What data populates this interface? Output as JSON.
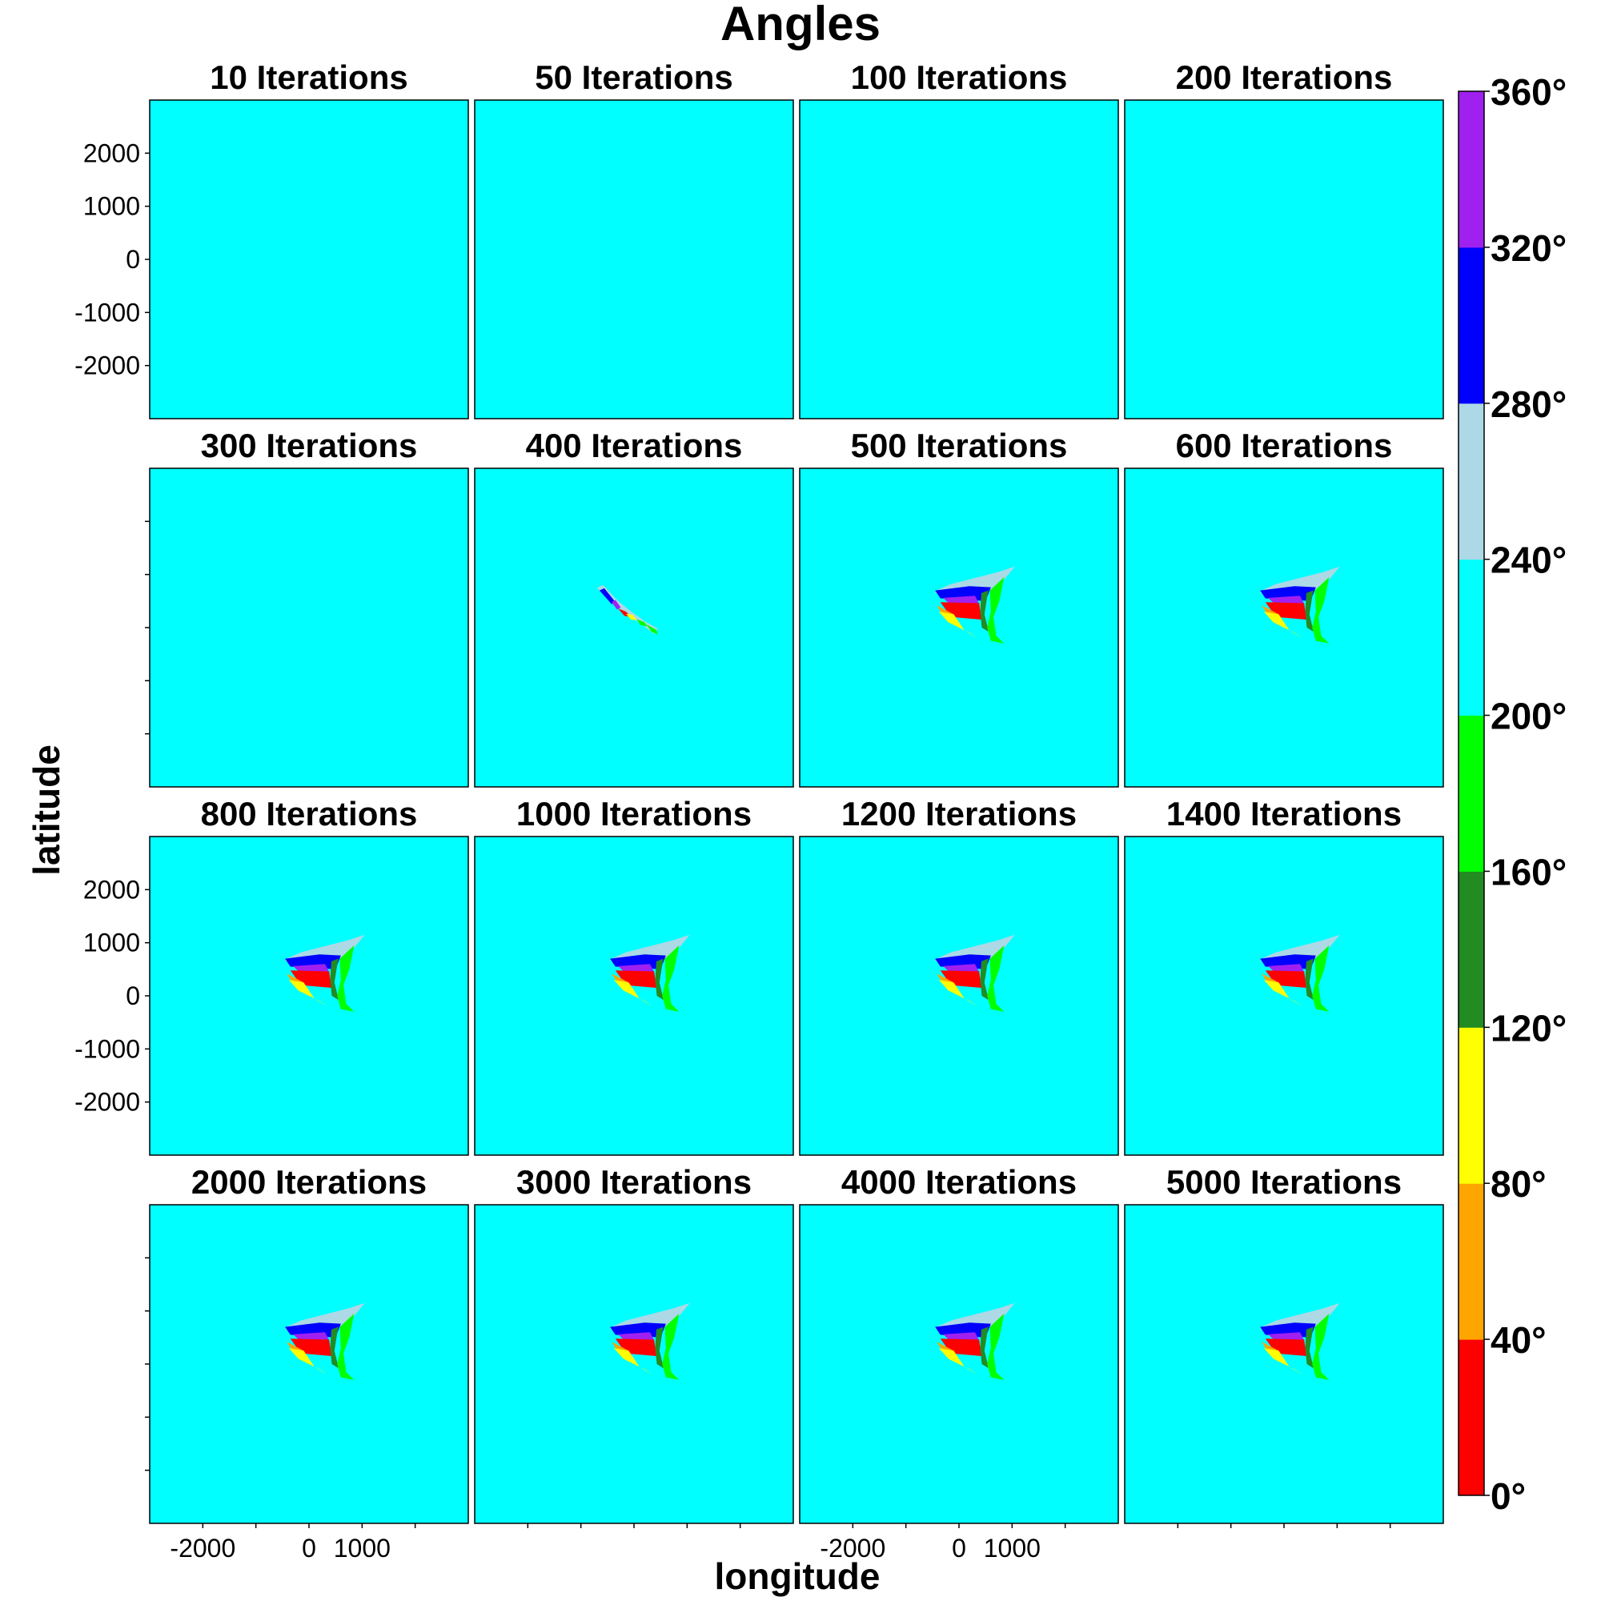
{
  "title": "Angles",
  "xlabel": "longitude",
  "ylabel": "latitude",
  "chart_data": {
    "type": "heatmap",
    "title": "Angles",
    "xlabel": "longitude",
    "ylabel": "latitude",
    "xlim": [
      -3000,
      3000
    ],
    "ylim": [
      -3000,
      3000
    ],
    "x_ticks": [
      "-2000",
      "0",
      "1000"
    ],
    "y_ticks": [
      "2000",
      "1000",
      "0",
      "-1000",
      "-2000"
    ],
    "background_angle_band": "200°–240°",
    "colorbar": {
      "ticks": [
        "0°",
        "40°",
        "80°",
        "120°",
        "160°",
        "200°",
        "240°",
        "280°",
        "320°",
        "360°"
      ],
      "bands": [
        {
          "from": 0,
          "to": 40,
          "color": "#ff0000"
        },
        {
          "from": 40,
          "to": 80,
          "color": "#ffa500"
        },
        {
          "from": 80,
          "to": 120,
          "color": "#ffff00"
        },
        {
          "from": 120,
          "to": 160,
          "color": "#228b22"
        },
        {
          "from": 160,
          "to": 200,
          "color": "#00ff00"
        },
        {
          "from": 200,
          "to": 240,
          "color": "#00ffff"
        },
        {
          "from": 240,
          "to": 280,
          "color": "#add8e6"
        },
        {
          "from": 280,
          "to": 320,
          "color": "#0000ff"
        },
        {
          "from": 320,
          "to": 360,
          "color": "#a020f0"
        }
      ]
    },
    "panels": [
      {
        "title": "10 Iterations",
        "pattern": "none"
      },
      {
        "title": "50 Iterations",
        "pattern": "none"
      },
      {
        "title": "100 Iterations",
        "pattern": "none"
      },
      {
        "title": "200 Iterations",
        "pattern": "none"
      },
      {
        "title": "300 Iterations",
        "pattern": "none"
      },
      {
        "title": "400 Iterations",
        "pattern": "line"
      },
      {
        "title": "500 Iterations",
        "pattern": "wedge"
      },
      {
        "title": "600 Iterations",
        "pattern": "wedge"
      },
      {
        "title": "800 Iterations",
        "pattern": "wedge"
      },
      {
        "title": "1000 Iterations",
        "pattern": "wedge"
      },
      {
        "title": "1200 Iterations",
        "pattern": "wedge"
      },
      {
        "title": "1400 Iterations",
        "pattern": "wedge"
      },
      {
        "title": "2000 Iterations",
        "pattern": "wedge"
      },
      {
        "title": "3000 Iterations",
        "pattern": "wedge"
      },
      {
        "title": "4000 Iterations",
        "pattern": "wedge"
      },
      {
        "title": "5000 Iterations",
        "pattern": "wedge"
      }
    ]
  }
}
